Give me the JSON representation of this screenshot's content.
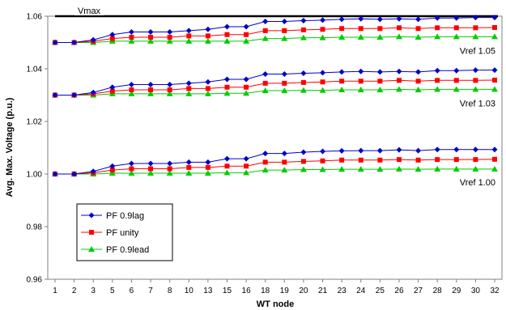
{
  "chart_data": {
    "type": "line",
    "xlabel": "WT node",
    "ylabel": "Avg. Max. Voltage (p.u.)",
    "ylim": [
      0.96,
      1.06
    ],
    "yticks": [
      "0.96",
      "0.98",
      "1.00",
      "1.02",
      "1.04",
      "1.06"
    ],
    "categories": [
      "1",
      "2",
      "3",
      "5",
      "6",
      "7",
      "8",
      "10",
      "13",
      "15",
      "16",
      "18",
      "19",
      "20",
      "21",
      "23",
      "24",
      "25",
      "26",
      "27",
      "28",
      "29",
      "30",
      "32"
    ],
    "grid": false,
    "legend_position": "bottom-left",
    "vmax": {
      "label": "Vmax",
      "value": 1.06,
      "color": "#000000"
    },
    "annotations": [
      {
        "text": "Vref 1.05",
        "y": 1.047
      },
      {
        "text": "Vref 1.03",
        "y": 1.027
      },
      {
        "text": "Vref 1.00",
        "y": 0.997
      }
    ],
    "series": [
      {
        "name": "PF 0.9lag",
        "color": "#0000cc",
        "marker": "diamond",
        "groups": [
          [
            1.05,
            1.05,
            1.051,
            1.053,
            1.054,
            1.054,
            1.054,
            1.0545,
            1.055,
            1.056,
            1.056,
            1.058,
            1.058,
            1.0583,
            1.0585,
            1.0588,
            1.059,
            1.0588,
            1.059,
            1.0588,
            1.0593,
            1.0593,
            1.0595,
            1.0595
          ],
          [
            1.03,
            1.03,
            1.031,
            1.033,
            1.034,
            1.034,
            1.034,
            1.0345,
            1.035,
            1.036,
            1.036,
            1.038,
            1.038,
            1.0383,
            1.0385,
            1.0388,
            1.039,
            1.0388,
            1.039,
            1.0388,
            1.0393,
            1.0393,
            1.0395,
            1.0395
          ],
          [
            1.0,
            1.0,
            1.001,
            1.003,
            1.004,
            1.004,
            1.004,
            1.0045,
            1.0045,
            1.0058,
            1.0058,
            1.0078,
            1.0078,
            1.0083,
            1.0086,
            1.0088,
            1.0089,
            1.0089,
            1.0092,
            1.0089,
            1.0093,
            1.0093,
            1.0093,
            1.0093
          ]
        ]
      },
      {
        "name": "PF unity",
        "color": "#ff0000",
        "marker": "square",
        "groups": [
          [
            1.05,
            1.05,
            1.0505,
            1.0515,
            1.052,
            1.052,
            1.052,
            1.0525,
            1.0525,
            1.053,
            1.053,
            1.0545,
            1.0545,
            1.0548,
            1.055,
            1.0553,
            1.0553,
            1.0553,
            1.0556,
            1.0553,
            1.0556,
            1.0556,
            1.0556,
            1.0557
          ],
          [
            1.03,
            1.03,
            1.0305,
            1.0315,
            1.032,
            1.032,
            1.032,
            1.0325,
            1.0325,
            1.033,
            1.033,
            1.0345,
            1.0345,
            1.0348,
            1.035,
            1.0353,
            1.0353,
            1.0353,
            1.0356,
            1.0353,
            1.0356,
            1.0356,
            1.0356,
            1.0357
          ],
          [
            1.0,
            1.0,
            1.0005,
            1.0015,
            1.002,
            1.002,
            1.002,
            1.0025,
            1.0025,
            1.003,
            1.003,
            1.0045,
            1.0045,
            1.0048,
            1.005,
            1.0053,
            1.0053,
            1.0053,
            1.0055,
            1.0053,
            1.0055,
            1.0055,
            1.0055,
            1.0056
          ]
        ]
      },
      {
        "name": "PF 0.9lead",
        "color": "#00cc00",
        "marker": "triangle",
        "groups": [
          [
            1.05,
            1.05,
            1.05,
            1.0505,
            1.0505,
            1.0505,
            1.0505,
            1.0505,
            1.0505,
            1.0505,
            1.0505,
            1.0515,
            1.0515,
            1.0518,
            1.0518,
            1.052,
            1.052,
            1.052,
            1.0522,
            1.052,
            1.0522,
            1.0522,
            1.0522,
            1.0522
          ],
          [
            1.03,
            1.03,
            1.03,
            1.0305,
            1.0305,
            1.0305,
            1.0305,
            1.0305,
            1.0305,
            1.0307,
            1.0307,
            1.0317,
            1.0317,
            1.0318,
            1.0318,
            1.032,
            1.032,
            1.032,
            1.0322,
            1.032,
            1.0322,
            1.0322,
            1.0322,
            1.0322
          ],
          [
            1.0,
            1.0,
            1.0,
            1.0003,
            1.0003,
            1.0003,
            1.0003,
            1.0003,
            1.0003,
            1.0005,
            1.0005,
            1.0015,
            1.0015,
            1.0017,
            1.0017,
            1.0018,
            1.0018,
            1.0018,
            1.0019,
            1.0018,
            1.0019,
            1.0019,
            1.0019,
            1.0019
          ]
        ]
      }
    ]
  }
}
